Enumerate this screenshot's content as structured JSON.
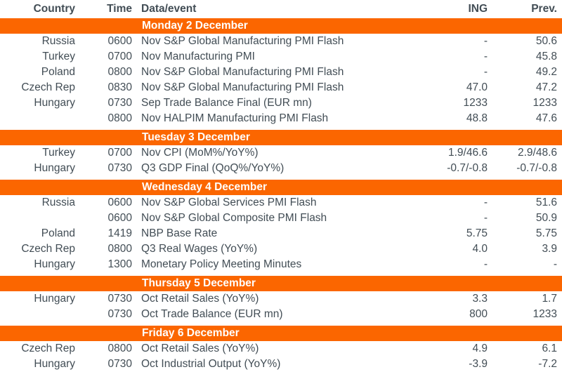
{
  "colors": {
    "accent": "#fb6600",
    "text": "#424d55",
    "band_text": "#ffffff"
  },
  "header": {
    "country": "Country",
    "time": "Time",
    "event": "Data/event",
    "ing": "ING",
    "prev": "Prev."
  },
  "sections": [
    {
      "title": "Monday 2 December",
      "rows": [
        {
          "country": "Russia",
          "time": "0600",
          "event": "Nov S&P Global Manufacturing PMI Flash",
          "ing": "-",
          "prev": "50.6"
        },
        {
          "country": "Turkey",
          "time": "0700",
          "event": "Nov Manufacturing PMI",
          "ing": "-",
          "prev": "45.8"
        },
        {
          "country": "Poland",
          "time": "0800",
          "event": "Nov S&P Global Manufacturing PMI Flash",
          "ing": "-",
          "prev": "49.2"
        },
        {
          "country": "Czech Rep",
          "time": "0830",
          "event": "Nov S&P Global Manufacturing PMI Flash",
          "ing": "47.0",
          "prev": "47.2"
        },
        {
          "country": "Hungary",
          "time": "0730",
          "event": "Sep Trade Balance Final (EUR mn)",
          "ing": "1233",
          "prev": "1233"
        },
        {
          "country": "",
          "time": "0800",
          "event": "Nov HALPIM Manufacturing PMI Flash",
          "ing": "48.8",
          "prev": "47.6"
        }
      ]
    },
    {
      "title": "Tuesday 3 December",
      "rows": [
        {
          "country": "Turkey",
          "time": "0700",
          "event": "Nov CPI (MoM%/YoY%)",
          "ing": "1.9/46.6",
          "prev": "2.9/48.6"
        },
        {
          "country": "Hungary",
          "time": "0730",
          "event": "Q3 GDP Final (QoQ%/YoY%)",
          "ing": "-0.7/-0.8",
          "prev": "-0.7/-0.8"
        }
      ]
    },
    {
      "title": "Wednesday 4 December",
      "rows": [
        {
          "country": "Russia",
          "time": "0600",
          "event": "Nov S&P Global Services PMI Flash",
          "ing": "-",
          "prev": "51.6"
        },
        {
          "country": "",
          "time": "0600",
          "event": "Nov S&P Global Composite PMI Flash",
          "ing": "-",
          "prev": "50.9"
        },
        {
          "country": "Poland",
          "time": "1419",
          "event": "NBP Base Rate",
          "ing": "5.75",
          "prev": "5.75"
        },
        {
          "country": "Czech Rep",
          "time": "0800",
          "event": "Q3 Real Wages (YoY%)",
          "ing": "4.0",
          "prev": "3.9"
        },
        {
          "country": "Hungary",
          "time": "1300",
          "event": "Monetary Policy Meeting Minutes",
          "ing": "-",
          "prev": "-"
        }
      ]
    },
    {
      "title": "Thursday 5 December",
      "rows": [
        {
          "country": "Hungary",
          "time": "0730",
          "event": "Oct Retail Sales (YoY%)",
          "ing": "3.3",
          "prev": "1.7"
        },
        {
          "country": "",
          "time": "0730",
          "event": "Oct Trade Balance (EUR mn)",
          "ing": "800",
          "prev": "1233"
        }
      ]
    },
    {
      "title": "Friday 6 December",
      "rows": [
        {
          "country": "Czech Rep",
          "time": "0800",
          "event": "Oct Retail Sales (YoY%)",
          "ing": "4.9",
          "prev": "6.1"
        },
        {
          "country": "Hungary",
          "time": "0730",
          "event": "Oct Industrial Output (YoY%)",
          "ing": "-3.9",
          "prev": "-7.2"
        }
      ]
    }
  ]
}
